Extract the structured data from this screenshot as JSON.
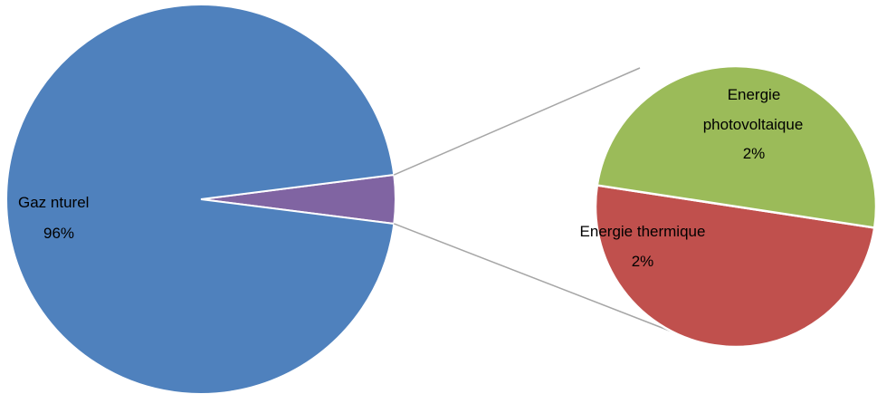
{
  "chart_data": {
    "type": "pie-of-pie",
    "title": "",
    "series": [
      {
        "name": "",
        "categories": [
          "Gaz nturel",
          "Energie photovoltaique",
          "Energie thermique"
        ],
        "values": [
          96,
          2,
          2
        ],
        "labels": [
          "96%",
          "2%",
          "2%"
        ]
      }
    ],
    "main_pie": {
      "slices": [
        {
          "category": "Gaz nturel",
          "value": 96,
          "color": "#4F81BD"
        },
        {
          "category": "Other",
          "value": 4,
          "color": "#8064A2"
        }
      ]
    },
    "secondary_pie": {
      "slices": [
        {
          "category": "Energie photovoltaique",
          "value": 2,
          "color": "#9BBB59"
        },
        {
          "category": "Energie thermique",
          "value": 2,
          "color": "#C0504D"
        }
      ]
    },
    "data_labels": {
      "gaz": {
        "line1": "Gaz nturel",
        "line2": "96%"
      },
      "pv": {
        "line1": "Energie",
        "line2": "photovoltaique",
        "line3": "2%"
      },
      "th": {
        "line1": "Energie thermique",
        "line2": "2%"
      }
    },
    "legend": "none"
  }
}
